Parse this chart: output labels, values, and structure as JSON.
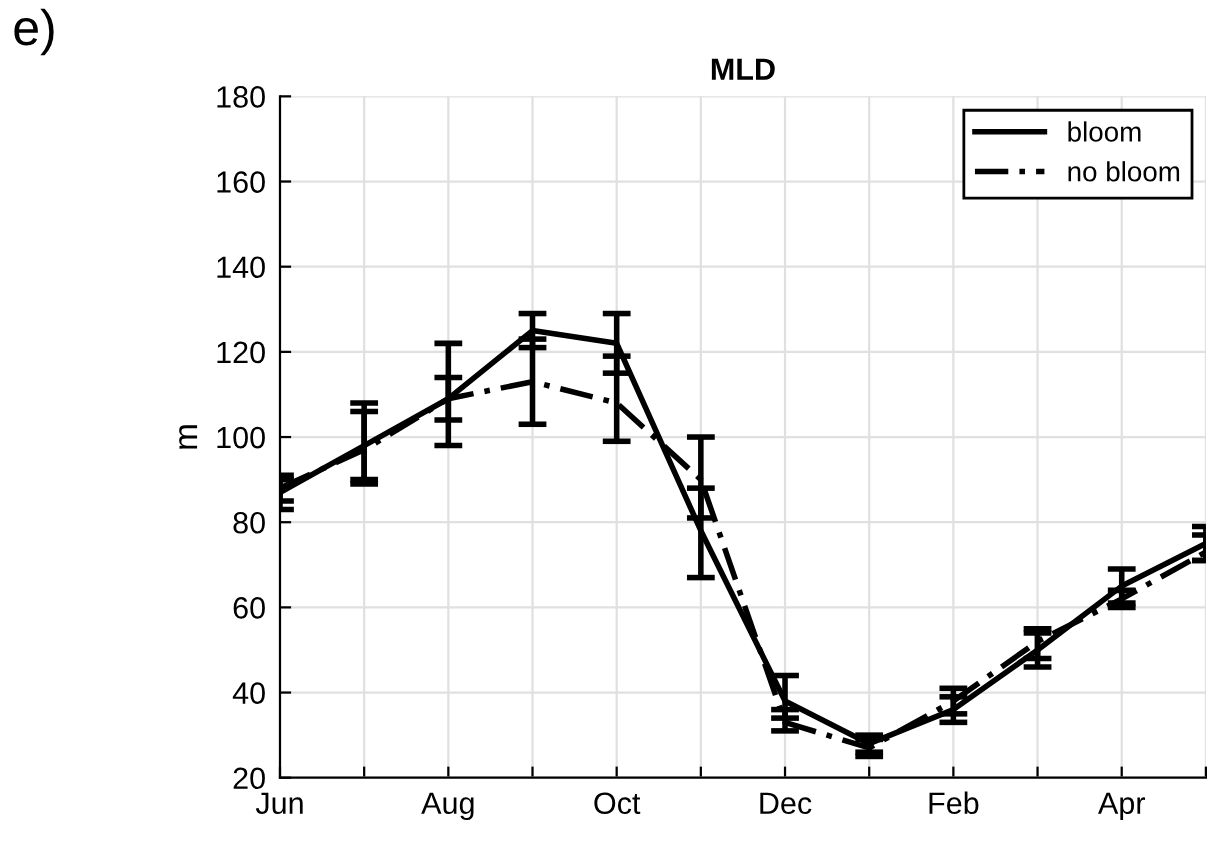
{
  "chart_data": {
    "type": "line",
    "title": "MLD",
    "ylabel": "m",
    "annotations": [
      "e)"
    ],
    "categories": [
      "Jun",
      null,
      "Aug",
      null,
      "Oct",
      null,
      "Dec",
      null,
      "Feb",
      null,
      "Apr",
      null
    ],
    "series": [
      {
        "name": "bloom",
        "color": "#000000",
        "line_style": "solid",
        "values": [
          87,
          98,
          109,
          125,
          122,
          78,
          38,
          28,
          36,
          50,
          65,
          75
        ],
        "errors": [
          [
            83,
            91
          ],
          [
            89,
            108
          ],
          [
            98,
            122
          ],
          [
            121,
            129
          ],
          [
            115,
            129
          ],
          [
            67,
            88
          ],
          [
            34,
            44
          ],
          [
            26,
            30
          ],
          [
            33,
            39
          ],
          [
            46,
            54
          ],
          [
            61,
            69
          ],
          [
            71,
            79
          ]
        ]
      },
      {
        "name": "no bloom",
        "color": "#000000",
        "line_style": "dashed",
        "values": [
          88,
          97,
          109,
          113,
          108,
          90,
          33,
          27,
          38,
          52,
          62,
          73
        ],
        "errors": [
          [
            85,
            90
          ],
          [
            90,
            106
          ],
          [
            104,
            114
          ],
          [
            103,
            123
          ],
          [
            99,
            119
          ],
          [
            81,
            100
          ],
          [
            31,
            36
          ],
          [
            25,
            29
          ],
          [
            35,
            41
          ],
          [
            48,
            55
          ],
          [
            60,
            64
          ],
          [
            71,
            77
          ]
        ]
      }
    ],
    "ylim": [
      20,
      180
    ],
    "yticks": [
      20,
      40,
      60,
      80,
      100,
      120,
      140,
      160,
      180
    ],
    "grid": true,
    "legend": "top right",
    "marker": "none"
  }
}
